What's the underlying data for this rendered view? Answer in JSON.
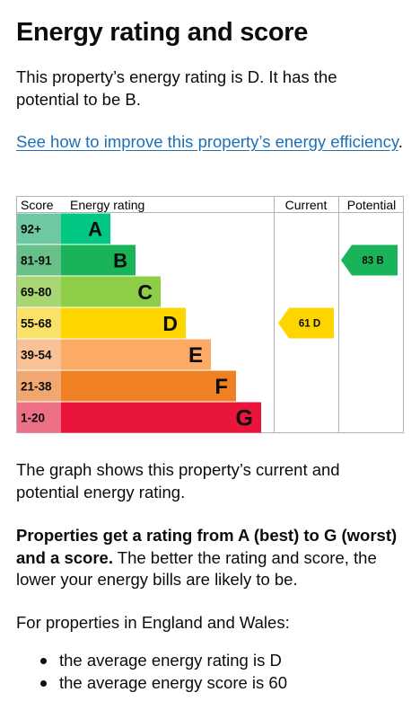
{
  "heading": "Energy rating and score",
  "intro": "This property’s energy rating is D. It has the potential to be B.",
  "improve_link": "See how to improve this property’s energy efficiency",
  "improve_link_end": ".",
  "chart_data": {
    "type": "bar",
    "headers": {
      "score": "Score",
      "rating": "Energy rating",
      "current": "Current",
      "potential": "Potential"
    },
    "bands": [
      {
        "score": "92+",
        "letter": "A",
        "color": "#00c781",
        "score_color": "#6ec8a1"
      },
      {
        "score": "81-91",
        "letter": "B",
        "color": "#19b459",
        "score_color": "#67c088"
      },
      {
        "score": "69-80",
        "letter": "C",
        "color": "#8dce46",
        "score_color": "#a8d672"
      },
      {
        "score": "55-68",
        "letter": "D",
        "color": "#ffd500",
        "score_color": "#f9e266"
      },
      {
        "score": "39-54",
        "letter": "E",
        "color": "#fcaa65",
        "score_color": "#f8c196"
      },
      {
        "score": "21-38",
        "letter": "F",
        "color": "#ef8023",
        "score_color": "#f1a770"
      },
      {
        "score": "1-20",
        "letter": "G",
        "color": "#e9153b",
        "score_color": "#ee7086"
      }
    ],
    "current": {
      "score": 61,
      "band": "D",
      "label": "61  D",
      "color": "#ffd500"
    },
    "potential": {
      "score": 83,
      "band": "B",
      "label": "83  B",
      "color": "#19b459"
    }
  },
  "graph_caption": "The graph shows this property’s current and potential energy rating.",
  "rating_bold": "Properties get a rating from A (best) to G (worst) and a score.",
  "rating_rest": " The better the rating and score, the lower your energy bills are likely to be.",
  "averages_intro": "For properties in England and Wales:",
  "averages": [
    "the average energy rating is D",
    "the average energy score is 60"
  ]
}
